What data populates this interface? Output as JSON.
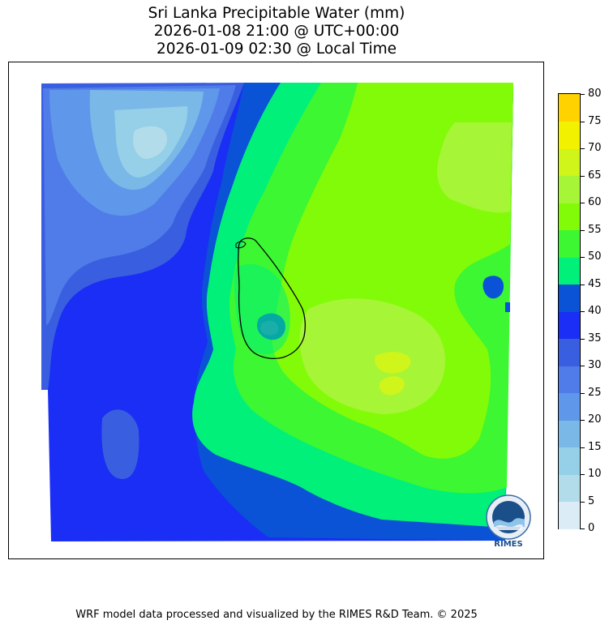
{
  "title": {
    "line1": "Sri Lanka Precipitable Water (mm)",
    "line2": "2026-01-08 21:00 @ UTC+00:00",
    "line3": "2026-01-09 02:30 @ Local Time"
  },
  "legend": {
    "ticks": [
      "0",
      "5",
      "10",
      "15",
      "20",
      "25",
      "30",
      "35",
      "40",
      "45",
      "50",
      "55",
      "60",
      "65",
      "70",
      "75",
      "80"
    ],
    "colors": [
      "#dbecf6",
      "#b3dcea",
      "#95d0e8",
      "#7ab8e8",
      "#5f97ea",
      "#4f7ce8",
      "#3a5ee0",
      "#1a2ef5",
      "#0a52d6",
      "#00f07a",
      "#3cf732",
      "#82fb08",
      "#a6f536",
      "#cff51a",
      "#f2f200",
      "#ffd200"
    ]
  },
  "logo": {
    "name": "RIMES",
    "text": "RIMES"
  },
  "footer": {
    "credit": "WRF model data processed and visualized by the RIMES R&D Team. © 2025"
  }
}
